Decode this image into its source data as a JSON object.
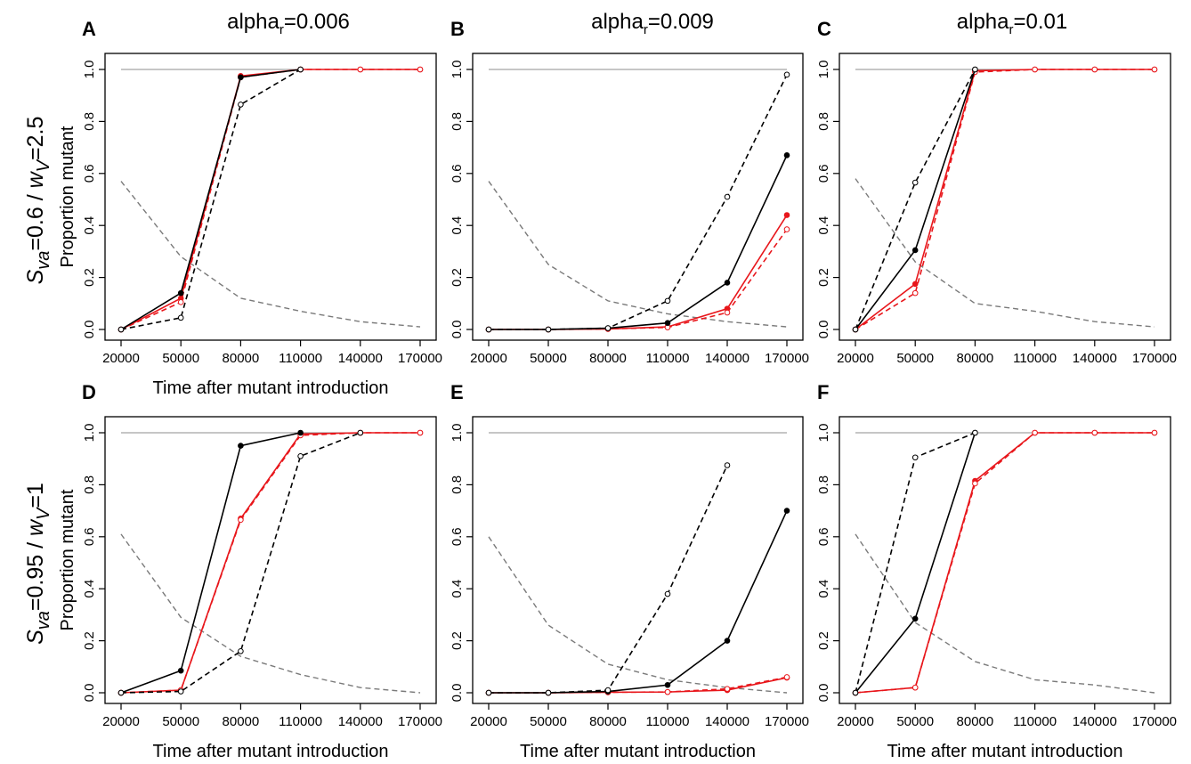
{
  "figure": {
    "column_titles": [
      {
        "prefix": "alpha",
        "sub": "r",
        "suffix": "=0.006"
      },
      {
        "prefix": "alpha",
        "sub": "r",
        "suffix": "=0.009"
      },
      {
        "prefix": "alpha",
        "sub": "r",
        "suffix": "=0.01"
      }
    ],
    "row_titles": [
      {
        "parts": [
          {
            "text": "S",
            "italic": true,
            "sub": false
          },
          {
            "text": "va",
            "italic": true,
            "sub": true
          },
          {
            "text": "=0.6 / ",
            "italic": false,
            "sub": false
          },
          {
            "text": "w",
            "italic": true,
            "sub": false
          },
          {
            "text": "V",
            "italic": true,
            "sub": true
          },
          {
            "text": "=2.5",
            "italic": false,
            "sub": false
          }
        ]
      },
      {
        "parts": [
          {
            "text": "S",
            "italic": true,
            "sub": false
          },
          {
            "text": "va",
            "italic": true,
            "sub": true
          },
          {
            "text": "=0.95 / ",
            "italic": false,
            "sub": false
          },
          {
            "text": "w",
            "italic": true,
            "sub": false
          },
          {
            "text": "V",
            "italic": true,
            "sub": true
          },
          {
            "text": "=1",
            "italic": false,
            "sub": false
          }
        ]
      }
    ]
  },
  "colors": {
    "black": "#000000",
    "red": "#e8161b",
    "ref_gray": "#8c8c8c",
    "decay_gray": "#7a7a7a"
  },
  "chart_data": [
    {
      "panel": "A",
      "type": "line",
      "title": "",
      "xlabel": "Time after mutant introduction",
      "ylabel": "Proportion mutant",
      "x": [
        20000,
        50000,
        80000,
        110000,
        140000,
        170000
      ],
      "xticks": [
        "20000",
        "50000",
        "80000",
        "110000",
        "140000",
        "170000"
      ],
      "yticks": [
        "0.0",
        "0.2",
        "0.4",
        "0.6",
        "0.8",
        "1.0"
      ],
      "ylim": [
        0,
        1
      ],
      "grid": false,
      "series": [
        {
          "color": "black",
          "style": "solid",
          "marker": "filled",
          "values": [
            0,
            0.14,
            0.97,
            1.0,
            null,
            null
          ]
        },
        {
          "color": "black",
          "style": "dashed",
          "marker": "open",
          "values": [
            0,
            0.045,
            0.865,
            1.0,
            null,
            null
          ]
        },
        {
          "color": "red",
          "style": "solid",
          "marker": "filled",
          "values": [
            0,
            0.12,
            0.975,
            1.0,
            1.0,
            1.0
          ]
        },
        {
          "color": "red",
          "style": "dashed",
          "marker": "open",
          "values": [
            0,
            0.105,
            0.97,
            1.0,
            1.0,
            1.0
          ]
        },
        {
          "color": "ref_gray",
          "style": "solid",
          "marker": "none",
          "values": [
            1.0,
            1.0,
            1.0,
            1.0,
            1.0,
            1.0
          ]
        },
        {
          "color": "decay_gray",
          "style": "dashed",
          "marker": "none",
          "values": [
            0.57,
            0.28,
            0.12,
            0.07,
            0.03,
            0.01
          ]
        }
      ]
    },
    {
      "panel": "B",
      "type": "line",
      "title": "",
      "xlabel": "",
      "ylabel": "",
      "x": [
        20000,
        50000,
        80000,
        110000,
        140000,
        170000
      ],
      "xticks": [
        "20000",
        "50000",
        "80000",
        "110000",
        "140000",
        "170000"
      ],
      "yticks": [
        "0.0",
        "0.2",
        "0.4",
        "0.6",
        "0.8",
        "1.0"
      ],
      "ylim": [
        0,
        1
      ],
      "grid": false,
      "series": [
        {
          "color": "black",
          "style": "solid",
          "marker": "filled",
          "values": [
            0,
            0,
            0.005,
            0.025,
            0.18,
            0.67
          ]
        },
        {
          "color": "black",
          "style": "dashed",
          "marker": "open",
          "values": [
            0,
            0,
            0.005,
            0.11,
            0.51,
            0.98
          ]
        },
        {
          "color": "red",
          "style": "solid",
          "marker": "filled",
          "values": [
            0,
            0,
            0.002,
            0.01,
            0.08,
            0.44
          ]
        },
        {
          "color": "red",
          "style": "dashed",
          "marker": "open",
          "values": [
            0,
            0,
            0.002,
            0.008,
            0.065,
            0.385
          ]
        },
        {
          "color": "ref_gray",
          "style": "solid",
          "marker": "none",
          "values": [
            1.0,
            1.0,
            1.0,
            1.0,
            1.0,
            1.0
          ]
        },
        {
          "color": "decay_gray",
          "style": "dashed",
          "marker": "none",
          "values": [
            0.57,
            0.25,
            0.11,
            0.06,
            0.03,
            0.01
          ]
        }
      ]
    },
    {
      "panel": "C",
      "type": "line",
      "title": "",
      "xlabel": "",
      "ylabel": "",
      "x": [
        20000,
        50000,
        80000,
        110000,
        140000,
        170000
      ],
      "xticks": [
        "20000",
        "50000",
        "80000",
        "110000",
        "140000",
        "170000"
      ],
      "yticks": [
        "0.0",
        "0.2",
        "0.4",
        "0.6",
        "0.8",
        "1.0"
      ],
      "ylim": [
        0,
        1
      ],
      "grid": false,
      "series": [
        {
          "color": "black",
          "style": "solid",
          "marker": "filled",
          "values": [
            0,
            0.305,
            1.0,
            null,
            null,
            null
          ]
        },
        {
          "color": "black",
          "style": "dashed",
          "marker": "open",
          "values": [
            0,
            0.565,
            1.0,
            null,
            null,
            null
          ]
        },
        {
          "color": "red",
          "style": "solid",
          "marker": "filled",
          "values": [
            0,
            0.175,
            0.995,
            1.0,
            1.0,
            1.0
          ]
        },
        {
          "color": "red",
          "style": "dashed",
          "marker": "open",
          "values": [
            0,
            0.14,
            0.99,
            1.0,
            1.0,
            1.0
          ]
        },
        {
          "color": "ref_gray",
          "style": "solid",
          "marker": "none",
          "values": [
            1.0,
            1.0,
            1.0,
            1.0,
            1.0,
            1.0
          ]
        },
        {
          "color": "decay_gray",
          "style": "dashed",
          "marker": "none",
          "values": [
            0.58,
            0.26,
            0.1,
            0.07,
            0.03,
            0.01
          ]
        }
      ]
    },
    {
      "panel": "D",
      "type": "line",
      "title": "",
      "xlabel": "Time after mutant introduction",
      "ylabel": "Proportion mutant",
      "x": [
        20000,
        50000,
        80000,
        110000,
        140000,
        170000
      ],
      "xticks": [
        "20000",
        "50000",
        "80000",
        "110000",
        "140000",
        "170000"
      ],
      "yticks": [
        "0.0",
        "0.2",
        "0.4",
        "0.6",
        "0.8",
        "1.0"
      ],
      "ylim": [
        0,
        1
      ],
      "grid": false,
      "series": [
        {
          "color": "black",
          "style": "solid",
          "marker": "filled",
          "values": [
            0,
            0.085,
            0.95,
            1.0,
            null,
            null
          ]
        },
        {
          "color": "black",
          "style": "dashed",
          "marker": "open",
          "values": [
            0,
            0.005,
            0.16,
            0.91,
            1.0,
            null
          ]
        },
        {
          "color": "red",
          "style": "solid",
          "marker": "filled",
          "values": [
            0,
            0.01,
            0.67,
            0.995,
            1.0,
            1.0
          ]
        },
        {
          "color": "red",
          "style": "dashed",
          "marker": "open",
          "values": [
            0,
            0.01,
            0.665,
            0.99,
            1.0,
            1.0
          ]
        },
        {
          "color": "ref_gray",
          "style": "solid",
          "marker": "none",
          "values": [
            1.0,
            1.0,
            1.0,
            1.0,
            1.0,
            1.0
          ]
        },
        {
          "color": "decay_gray",
          "style": "dashed",
          "marker": "none",
          "values": [
            0.61,
            0.29,
            0.14,
            0.07,
            0.02,
            0.0
          ]
        }
      ]
    },
    {
      "panel": "E",
      "type": "line",
      "title": "",
      "xlabel": "Time after mutant introduction",
      "ylabel": "",
      "x": [
        20000,
        50000,
        80000,
        110000,
        140000,
        170000
      ],
      "xticks": [
        "20000",
        "50000",
        "80000",
        "110000",
        "140000",
        "170000"
      ],
      "yticks": [
        "0.0",
        "0.2",
        "0.4",
        "0.6",
        "0.8",
        "1.0"
      ],
      "ylim": [
        0,
        1
      ],
      "grid": false,
      "series": [
        {
          "color": "black",
          "style": "solid",
          "marker": "filled",
          "values": [
            0,
            0,
            0.005,
            0.03,
            0.2,
            0.7
          ]
        },
        {
          "color": "black",
          "style": "dashed",
          "marker": "open",
          "values": [
            0,
            0,
            0.01,
            0.38,
            0.875,
            null
          ]
        },
        {
          "color": "red",
          "style": "solid",
          "marker": "filled",
          "values": [
            0,
            0,
            0.002,
            0.003,
            0.01,
            0.058
          ]
        },
        {
          "color": "red",
          "style": "dashed",
          "marker": "open",
          "values": [
            0,
            0,
            0.002,
            0.003,
            0.015,
            0.06
          ]
        },
        {
          "color": "ref_gray",
          "style": "solid",
          "marker": "none",
          "values": [
            1.0,
            1.0,
            1.0,
            1.0,
            1.0,
            1.0
          ]
        },
        {
          "color": "decay_gray",
          "style": "dashed",
          "marker": "none",
          "values": [
            0.6,
            0.26,
            0.11,
            0.05,
            0.02,
            0.0
          ]
        }
      ]
    },
    {
      "panel": "F",
      "type": "line",
      "title": "",
      "xlabel": "Time after mutant introduction",
      "ylabel": "",
      "x": [
        20000,
        50000,
        80000,
        110000,
        140000,
        170000
      ],
      "xticks": [
        "20000",
        "50000",
        "80000",
        "110000",
        "140000",
        "170000"
      ],
      "yticks": [
        "0.0",
        "0.2",
        "0.4",
        "0.6",
        "0.8",
        "1.0"
      ],
      "ylim": [
        0,
        1
      ],
      "grid": false,
      "series": [
        {
          "color": "black",
          "style": "solid",
          "marker": "filled",
          "values": [
            0,
            0.285,
            1.0,
            null,
            null,
            null
          ]
        },
        {
          "color": "black",
          "style": "dashed",
          "marker": "open",
          "values": [
            0,
            0.905,
            1.0,
            null,
            null,
            null
          ]
        },
        {
          "color": "red",
          "style": "solid",
          "marker": "filled",
          "values": [
            0,
            0.02,
            0.815,
            1.0,
            1.0,
            1.0
          ]
        },
        {
          "color": "red",
          "style": "dashed",
          "marker": "open",
          "values": [
            0,
            0.02,
            0.805,
            1.0,
            1.0,
            1.0
          ]
        },
        {
          "color": "ref_gray",
          "style": "solid",
          "marker": "none",
          "values": [
            1.0,
            1.0,
            1.0,
            1.0,
            1.0,
            1.0
          ]
        },
        {
          "color": "decay_gray",
          "style": "dashed",
          "marker": "none",
          "values": [
            0.61,
            0.27,
            0.12,
            0.05,
            0.03,
            0.0
          ]
        }
      ]
    }
  ]
}
